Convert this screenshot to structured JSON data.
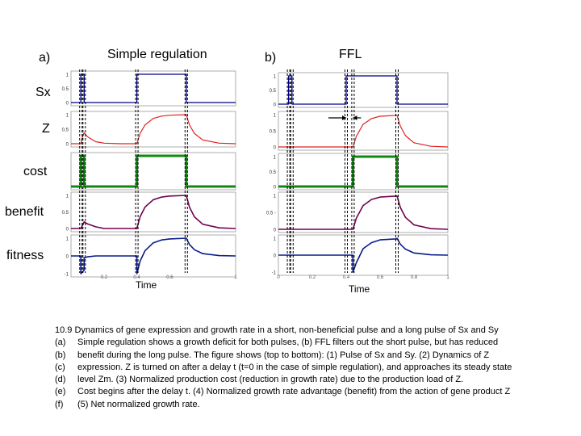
{
  "panels": [
    {
      "letter": "a)",
      "title": "Simple regulation",
      "xlabel": "Time"
    },
    {
      "letter": "b)",
      "title": "FFL",
      "xlabel": "Time"
    }
  ],
  "row_labels": [
    "Sx",
    "Z",
    "cost",
    "benefit",
    "fitness"
  ],
  "colors": {
    "sx": "#000080",
    "z": "#e02020",
    "cost": "#118811",
    "benefit": "#700050",
    "fitness": "#0a1a8a",
    "axes": "#999999",
    "markers": "#000000"
  },
  "chart_data": [
    {
      "type": "line",
      "title": "Simple regulation",
      "xlabel": "Time",
      "xlim": [
        0,
        1
      ],
      "x_ticks": [
        0.2,
        0.4,
        0.6,
        1
      ],
      "pulse_markers_x": [
        0.06,
        0.08,
        0.4,
        0.7
      ],
      "subplots": [
        {
          "name": "Sx",
          "ylim": [
            0,
            1
          ],
          "y_ticks": [
            "1",
            "0.5",
            "0"
          ],
          "series": [
            {
              "name": "Sx",
              "x": [
                0,
                0.06,
                0.06,
                0.08,
                0.08,
                0.4,
                0.4,
                0.7,
                0.7,
                1
              ],
              "y": [
                0,
                0,
                1,
                1,
                0,
                0,
                1,
                1,
                0,
                0
              ]
            }
          ]
        },
        {
          "name": "Z",
          "ylim": [
            0,
            1
          ],
          "y_ticks": [
            "1",
            "0.5",
            "0"
          ],
          "series": [
            {
              "name": "Z",
              "x": [
                0,
                0.06,
                0.065,
                0.07,
                0.08,
                0.1,
                0.15,
                0.2,
                0.3,
                0.4,
                0.42,
                0.45,
                0.5,
                0.55,
                0.6,
                0.7,
                0.72,
                0.75,
                0.8,
                0.9,
                1
              ],
              "y": [
                0,
                0,
                0.13,
                0.24,
                0.38,
                0.24,
                0.07,
                0.02,
                0,
                0,
                0.36,
                0.65,
                0.87,
                0.95,
                0.98,
                1,
                0.64,
                0.35,
                0.13,
                0.02,
                0
              ]
            }
          ]
        },
        {
          "name": "cost",
          "ylim": [
            0,
            1
          ],
          "y_ticks": [],
          "series": [
            {
              "name": "cost",
              "x": [
                0,
                0.06,
                0.06,
                0.08,
                0.08,
                0.4,
                0.4,
                0.7,
                0.7,
                1
              ],
              "y": [
                0,
                0,
                1,
                1,
                0,
                0,
                1,
                1,
                0,
                0
              ]
            }
          ]
        },
        {
          "name": "benefit",
          "ylim": [
            0,
            1
          ],
          "y_ticks": [
            "1",
            "0.5",
            "0"
          ],
          "series": [
            {
              "name": "benefit",
              "x": [
                0,
                0.06,
                0.07,
                0.08,
                0.1,
                0.15,
                0.2,
                0.4,
                0.42,
                0.45,
                0.5,
                0.55,
                0.6,
                0.7,
                0.72,
                0.75,
                0.8,
                0.9,
                1
              ],
              "y": [
                0,
                0,
                0.1,
                0.2,
                0.14,
                0.05,
                0,
                0,
                0.36,
                0.65,
                0.87,
                0.95,
                0.98,
                1,
                0.64,
                0.35,
                0.13,
                0.02,
                0
              ]
            }
          ]
        },
        {
          "name": "fitness",
          "ylim": [
            -1,
            1
          ],
          "y_ticks": [
            "1",
            "0",
            "-1"
          ],
          "series": [
            {
              "name": "fitness",
              "x": [
                0,
                0.06,
                0.06,
                0.08,
                0.08,
                0.1,
                0.15,
                0.2,
                0.4,
                0.4,
                0.42,
                0.45,
                0.5,
                0.55,
                0.6,
                0.7,
                0.7,
                0.72,
                0.75,
                0.8,
                0.9,
                1
              ],
              "y": [
                0,
                0,
                -1,
                -0.8,
                -0.1,
                -0.05,
                0,
                0,
                0,
                -1,
                -0.28,
                0.3,
                0.74,
                0.9,
                0.96,
                1,
                1.64,
                0.64,
                0.35,
                0.13,
                0.02,
                0
              ]
            }
          ]
        }
      ]
    },
    {
      "type": "line",
      "title": "FFL",
      "xlabel": "Time",
      "xlim": [
        0,
        1
      ],
      "x_ticks": [
        0,
        0.2,
        0.4,
        0.6,
        0.8,
        1
      ],
      "pulse_markers_x": [
        0.06,
        0.08,
        0.4,
        0.44,
        0.7
      ],
      "subplots": [
        {
          "name": "Sx",
          "ylim": [
            0,
            1
          ],
          "y_ticks": [
            "1",
            "0.5",
            "0"
          ],
          "series": [
            {
              "name": "Sx",
              "x": [
                0,
                0.06,
                0.06,
                0.08,
                0.08,
                0.4,
                0.4,
                0.7,
                0.7,
                1
              ],
              "y": [
                0,
                0,
                1,
                1,
                0,
                0,
                1,
                1,
                0,
                0
              ]
            }
          ]
        },
        {
          "name": "Z",
          "ylim": [
            0,
            1
          ],
          "y_ticks": [
            "1",
            "0.5",
            "0"
          ],
          "series": [
            {
              "name": "Z",
              "x": [
                0,
                0.44,
                0.46,
                0.5,
                0.55,
                0.6,
                0.7,
                0.72,
                0.75,
                0.8,
                0.9,
                1
              ],
              "y": [
                0,
                0,
                0.33,
                0.7,
                0.88,
                0.95,
                0.98,
                0.64,
                0.35,
                0.13,
                0.02,
                0
              ]
            }
          ]
        },
        {
          "name": "cost",
          "ylim": [
            0,
            1
          ],
          "y_ticks": [
            "1",
            "0.5",
            "0"
          ],
          "series": [
            {
              "name": "cost",
              "x": [
                0,
                0.44,
                0.44,
                0.7,
                0.7,
                1
              ],
              "y": [
                0,
                0,
                1,
                1,
                0,
                0
              ]
            }
          ]
        },
        {
          "name": "benefit",
          "ylim": [
            0,
            1
          ],
          "y_ticks": [
            "1",
            "0.5 -",
            "0"
          ],
          "series": [
            {
              "name": "benefit",
              "x": [
                0,
                0.44,
                0.46,
                0.5,
                0.55,
                0.6,
                0.7,
                0.72,
                0.75,
                0.8,
                0.9,
                1
              ],
              "y": [
                0,
                0,
                0.33,
                0.7,
                0.88,
                0.95,
                0.98,
                0.64,
                0.35,
                0.13,
                0.02,
                0
              ]
            }
          ]
        },
        {
          "name": "fitness",
          "ylim": [
            -1,
            1
          ],
          "y_ticks": [
            "1",
            "0",
            "-1"
          ],
          "series": [
            {
              "name": "fitness",
              "x": [
                0,
                0.44,
                0.44,
                0.46,
                0.5,
                0.55,
                0.6,
                0.7,
                0.7,
                0.72,
                0.75,
                0.8,
                0.9,
                1
              ],
              "y": [
                0,
                0,
                -1,
                -0.45,
                0.38,
                0.74,
                0.9,
                0.96,
                1.6,
                0.64,
                0.35,
                0.13,
                0.02,
                0
              ]
            }
          ]
        }
      ]
    }
  ],
  "caption": {
    "heading": "10.9 Dynamics of gene expression and growth rate in a short, non-beneficial pulse and a long pulse of Sx and Sy",
    "lines": [
      {
        "tag": "(a)",
        "text": "Simple regulation shows a growth deficit for both pulses, (b) FFL filters out the short pulse, but has reduced"
      },
      {
        "tag": "(b)",
        "text": "benefit during the long pulse. The figure shows (top to bottom): (1) Pulse of Sx and Sy. (2) Dynamics of Z"
      },
      {
        "tag": "(c)",
        "text": "expression. Z is turned on after a delay t (t=0 in the case of simple regulation), and approaches its steady state"
      },
      {
        "tag": "(d)",
        "text": "level Zm. (3) Normalized production cost (reduction in growth rate) due to the production load of Z."
      },
      {
        "tag": "(e)",
        "text": "Cost begins after the delay t. (4) Normalized growth rate advantage (benefit) from the action of gene product Z"
      },
      {
        "tag": "(f)",
        "text": "(5) Net normalized growth rate."
      }
    ]
  }
}
